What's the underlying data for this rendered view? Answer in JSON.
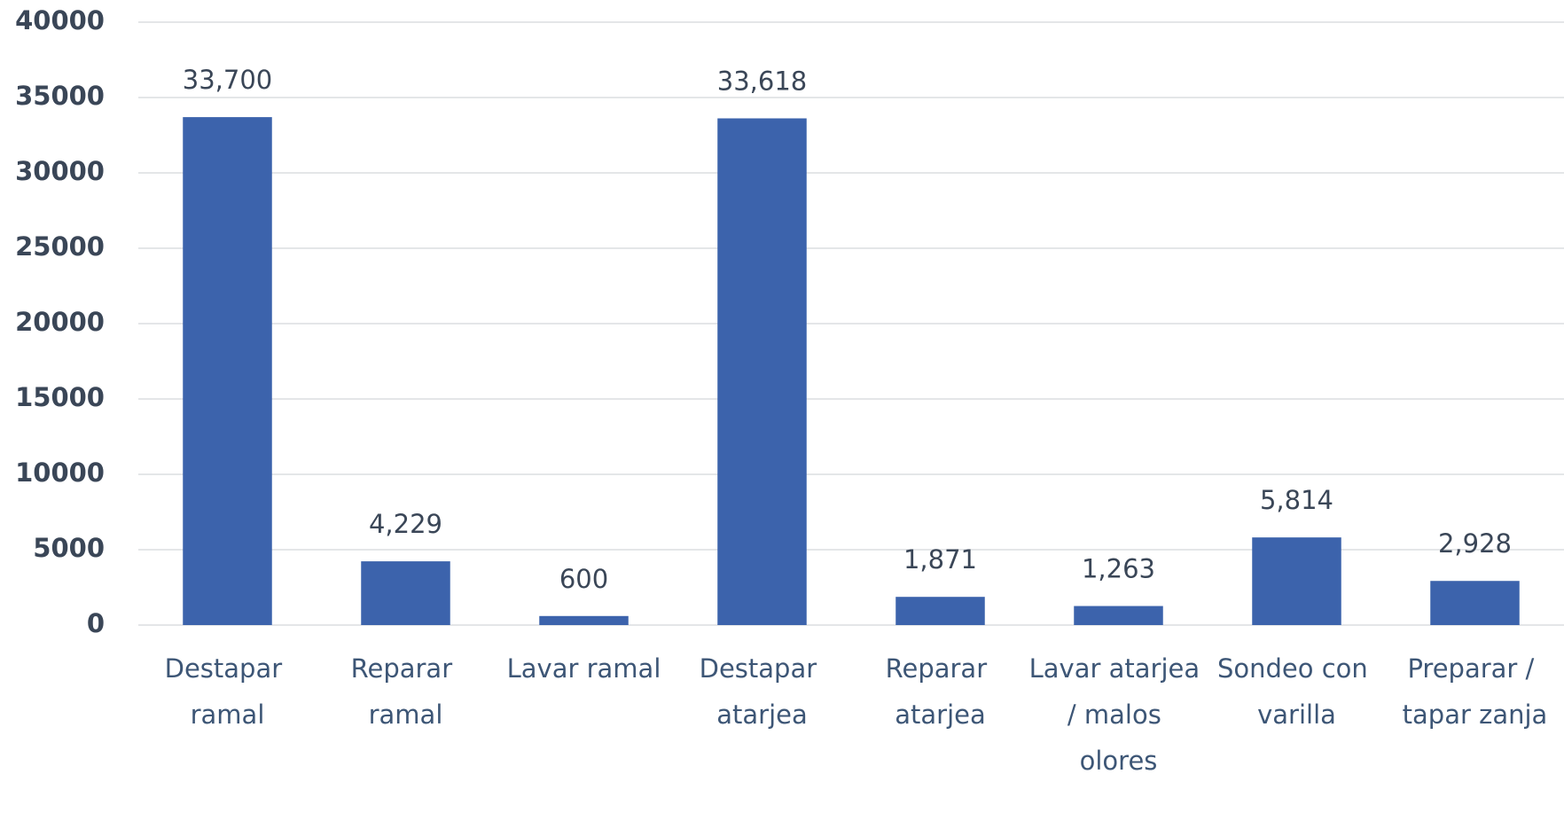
{
  "chart_data": {
    "type": "bar",
    "categories": [
      "Destapar ramal",
      "Reparar ramal",
      "Lavar ramal",
      "Destapar atarjea",
      "Reparar atarjea",
      "Lavar atarjea / malos olores",
      "Sondeo con varilla",
      "Preparar / tapar zanja"
    ],
    "values": [
      33700,
      4229,
      600,
      33618,
      1871,
      1263,
      5814,
      2928
    ],
    "value_labels": [
      "33,700",
      "4,229",
      "600",
      "33,618",
      "1,871",
      "1,263",
      "5,814",
      "2,928"
    ],
    "color": "#3c63ac",
    "ylim": [
      0,
      40000
    ],
    "yticks": [
      0,
      5000,
      10000,
      15000,
      20000,
      25000,
      30000,
      35000,
      40000
    ],
    "grid": true
  }
}
